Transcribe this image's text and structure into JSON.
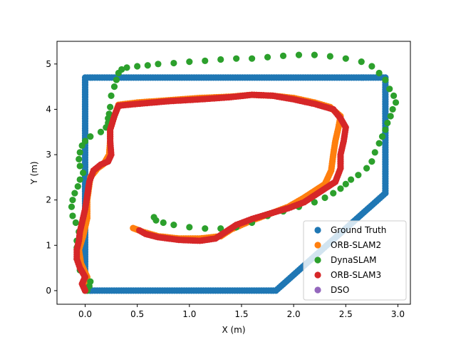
{
  "chart_data": {
    "type": "scatter",
    "title": "",
    "xlabel": "X (m)",
    "ylabel": "Y (m)",
    "xlim": [
      -0.27,
      3.12
    ],
    "ylim": [
      -0.3,
      5.5
    ],
    "xticks": [
      0.0,
      0.5,
      1.0,
      1.5,
      2.0,
      2.5,
      3.0
    ],
    "xtick_labels": [
      "0.0",
      "0.5",
      "1.0",
      "1.5",
      "2.0",
      "2.5",
      "3.0"
    ],
    "yticks": [
      0,
      1,
      2,
      3,
      4,
      5
    ],
    "ytick_labels": [
      "0",
      "1",
      "2",
      "3",
      "4",
      "5"
    ],
    "grid": false,
    "legend_position": "lower-right",
    "series": [
      {
        "name": "Ground Truth",
        "color": "#1f77b4",
        "path": true,
        "points": [
          [
            0.0,
            0.0
          ],
          [
            1.83,
            0.0
          ],
          [
            2.88,
            2.15
          ],
          [
            2.88,
            4.7
          ],
          [
            0.0,
            4.7
          ],
          [
            0.0,
            0.0
          ]
        ]
      },
      {
        "name": "ORB-SLAM2",
        "color": "#ff7f0e",
        "path": true,
        "points": [
          [
            0.0,
            0.0
          ],
          [
            0.02,
            0.3
          ],
          [
            -0.04,
            0.6
          ],
          [
            -0.06,
            0.9
          ],
          [
            -0.02,
            1.2
          ],
          [
            0.02,
            1.6
          ],
          [
            0.02,
            2.0
          ],
          [
            0.05,
            2.5
          ],
          [
            0.12,
            2.7
          ],
          [
            0.18,
            2.8
          ],
          [
            0.23,
            3.0
          ],
          [
            0.24,
            3.3
          ],
          [
            0.24,
            3.55
          ],
          [
            0.28,
            3.85
          ],
          [
            0.32,
            4.1
          ],
          [
            0.5,
            4.15
          ],
          [
            0.8,
            4.2
          ],
          [
            1.1,
            4.25
          ],
          [
            1.4,
            4.28
          ],
          [
            1.6,
            4.32
          ],
          [
            1.8,
            4.3
          ],
          [
            2.0,
            4.25
          ],
          [
            2.2,
            4.15
          ],
          [
            2.35,
            4.05
          ],
          [
            2.45,
            3.85
          ],
          [
            2.43,
            3.6
          ],
          [
            2.4,
            3.3
          ],
          [
            2.38,
            3.0
          ],
          [
            2.36,
            2.65
          ],
          [
            2.3,
            2.35
          ],
          [
            2.2,
            2.2
          ],
          [
            2.1,
            2.05
          ],
          [
            1.95,
            1.85
          ],
          [
            1.8,
            1.72
          ],
          [
            1.6,
            1.55
          ],
          [
            1.4,
            1.35
          ],
          [
            1.3,
            1.2
          ],
          [
            1.1,
            1.15
          ],
          [
            0.9,
            1.15
          ],
          [
            0.7,
            1.2
          ],
          [
            0.55,
            1.3
          ],
          [
            0.46,
            1.38
          ]
        ]
      },
      {
        "name": "DynaSLAM",
        "color": "#2ca02c",
        "path": false,
        "points": [
          [
            0.02,
            0.0
          ],
          [
            0.04,
            0.1
          ],
          [
            0.05,
            0.2
          ],
          [
            0.0,
            0.3
          ],
          [
            -0.05,
            0.45
          ],
          [
            -0.08,
            0.7
          ],
          [
            -0.08,
            0.95
          ],
          [
            -0.08,
            1.1
          ],
          [
            -0.06,
            1.3
          ],
          [
            -0.09,
            1.5
          ],
          [
            -0.12,
            1.65
          ],
          [
            -0.13,
            1.85
          ],
          [
            -0.12,
            2.0
          ],
          [
            -0.1,
            2.15
          ],
          [
            -0.07,
            2.3
          ],
          [
            -0.05,
            2.45
          ],
          [
            -0.02,
            2.6
          ],
          [
            -0.05,
            2.75
          ],
          [
            -0.06,
            2.9
          ],
          [
            -0.05,
            3.05
          ],
          [
            -0.03,
            3.2
          ],
          [
            0.0,
            3.3
          ],
          [
            0.05,
            3.4
          ],
          [
            0.15,
            3.5
          ],
          [
            0.2,
            3.6
          ],
          [
            0.22,
            3.7
          ],
          [
            0.22,
            3.8
          ],
          [
            0.23,
            3.9
          ],
          [
            0.24,
            4.05
          ],
          [
            0.25,
            4.3
          ],
          [
            0.28,
            4.5
          ],
          [
            0.3,
            4.65
          ],
          [
            0.32,
            4.8
          ],
          [
            0.35,
            4.88
          ],
          [
            0.4,
            4.92
          ],
          [
            0.5,
            4.95
          ],
          [
            0.6,
            4.97
          ],
          [
            0.7,
            5.0
          ],
          [
            0.85,
            5.02
          ],
          [
            1.0,
            5.05
          ],
          [
            1.15,
            5.07
          ],
          [
            1.3,
            5.1
          ],
          [
            1.45,
            5.12
          ],
          [
            1.6,
            5.12
          ],
          [
            1.75,
            5.15
          ],
          [
            1.9,
            5.18
          ],
          [
            2.05,
            5.2
          ],
          [
            2.2,
            5.2
          ],
          [
            2.35,
            5.17
          ],
          [
            2.5,
            5.12
          ],
          [
            2.65,
            5.05
          ],
          [
            2.75,
            4.95
          ],
          [
            2.82,
            4.8
          ],
          [
            2.88,
            4.65
          ],
          [
            2.92,
            4.45
          ],
          [
            2.96,
            4.3
          ],
          [
            2.98,
            4.15
          ],
          [
            2.95,
            4.0
          ],
          [
            2.93,
            3.85
          ],
          [
            2.9,
            3.7
          ],
          [
            2.88,
            3.55
          ],
          [
            2.85,
            3.4
          ],
          [
            2.82,
            3.25
          ],
          [
            2.78,
            3.05
          ],
          [
            2.75,
            2.85
          ],
          [
            2.7,
            2.7
          ],
          [
            2.62,
            2.55
          ],
          [
            2.55,
            2.45
          ],
          [
            2.5,
            2.35
          ],
          [
            2.45,
            2.25
          ],
          [
            2.38,
            2.15
          ],
          [
            2.3,
            2.05
          ],
          [
            2.2,
            1.95
          ],
          [
            2.05,
            1.85
          ],
          [
            1.9,
            1.75
          ],
          [
            1.75,
            1.65
          ],
          [
            1.6,
            1.5
          ],
          [
            1.45,
            1.4
          ],
          [
            1.3,
            1.37
          ],
          [
            1.15,
            1.37
          ],
          [
            1.0,
            1.4
          ],
          [
            0.85,
            1.45
          ],
          [
            0.75,
            1.5
          ],
          [
            0.68,
            1.55
          ],
          [
            0.66,
            1.62
          ]
        ]
      },
      {
        "name": "ORB-SLAM3",
        "color": "#d62728",
        "path": true,
        "points": [
          [
            0.0,
            0.0
          ],
          [
            -0.03,
            0.15
          ],
          [
            0.0,
            0.3
          ],
          [
            -0.05,
            0.5
          ],
          [
            -0.08,
            0.7
          ],
          [
            -0.08,
            0.9
          ],
          [
            -0.06,
            1.1
          ],
          [
            -0.05,
            1.3
          ],
          [
            -0.03,
            1.5
          ],
          [
            0.0,
            1.8
          ],
          [
            0.02,
            2.1
          ],
          [
            0.04,
            2.4
          ],
          [
            0.08,
            2.65
          ],
          [
            0.15,
            2.78
          ],
          [
            0.22,
            2.85
          ],
          [
            0.25,
            3.0
          ],
          [
            0.24,
            3.3
          ],
          [
            0.24,
            3.55
          ],
          [
            0.28,
            3.85
          ],
          [
            0.32,
            4.08
          ],
          [
            0.5,
            4.12
          ],
          [
            0.8,
            4.18
          ],
          [
            1.1,
            4.22
          ],
          [
            1.4,
            4.27
          ],
          [
            1.6,
            4.32
          ],
          [
            1.8,
            4.3
          ],
          [
            2.0,
            4.22
          ],
          [
            2.2,
            4.12
          ],
          [
            2.38,
            4.0
          ],
          [
            2.45,
            3.8
          ],
          [
            2.5,
            3.6
          ],
          [
            2.48,
            3.3
          ],
          [
            2.45,
            3.0
          ],
          [
            2.45,
            2.7
          ],
          [
            2.4,
            2.4
          ],
          [
            2.3,
            2.25
          ],
          [
            2.2,
            2.1
          ],
          [
            2.1,
            1.95
          ],
          [
            1.95,
            1.82
          ],
          [
            1.8,
            1.72
          ],
          [
            1.6,
            1.58
          ],
          [
            1.45,
            1.45
          ],
          [
            1.35,
            1.3
          ],
          [
            1.25,
            1.15
          ],
          [
            1.1,
            1.1
          ],
          [
            0.9,
            1.12
          ],
          [
            0.7,
            1.18
          ],
          [
            0.58,
            1.25
          ],
          [
            0.52,
            1.33
          ]
        ]
      },
      {
        "name": "DSO",
        "color": "#9467bd",
        "path": false,
        "points": []
      }
    ]
  }
}
